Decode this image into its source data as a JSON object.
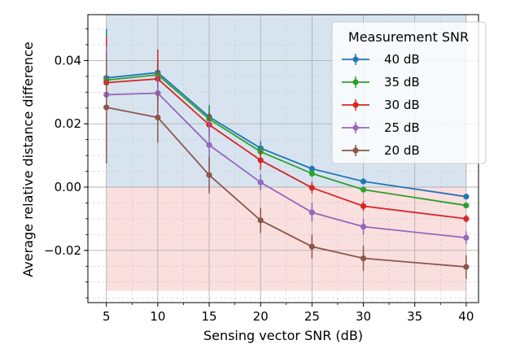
{
  "chart_data": {
    "type": "line",
    "title": "",
    "xlabel": "Sensing vector SNR (dB)",
    "ylabel": "Average relative distance difference",
    "x": [
      5,
      10,
      15,
      20,
      25,
      30,
      40
    ],
    "xlim": [
      3.2,
      41.2
    ],
    "ylim": [
      -0.0365,
      0.0545
    ],
    "xticks": [
      5,
      10,
      15,
      20,
      25,
      30,
      35,
      40
    ],
    "xtick_labels": [
      "5",
      "10",
      "15",
      "20",
      "25",
      "30",
      "35",
      "40"
    ],
    "yticks": [
      -0.02,
      0.0,
      0.02,
      0.04
    ],
    "ytick_labels": [
      "−0.02",
      "0.00",
      "0.02",
      "0.04"
    ],
    "grid": true,
    "legend_title": "Measurement SNR",
    "legend_position": "top-right",
    "shaded_regions": [
      {
        "name": "positive",
        "x_range": [
          5,
          40
        ],
        "y_range": [
          0.0,
          0.0545
        ],
        "color": "#b7cee3"
      },
      {
        "name": "negative",
        "x_range": [
          5,
          40
        ],
        "y_range": [
          -0.0328,
          0.0
        ],
        "color": "#f6c4c4"
      }
    ],
    "series": [
      {
        "name": "40 dB",
        "color": "#1f77b4",
        "values": [
          0.0345,
          0.0362,
          0.0222,
          0.0123,
          0.0058,
          0.0018,
          -0.003
        ],
        "err_lo": [
          0.0195,
          0.0325,
          0.0195,
          0.01,
          0.005,
          0.0015,
          -0.0035
        ],
        "err_hi": [
          0.05,
          0.04,
          0.026,
          0.0145,
          0.0068,
          0.0022,
          -0.0026
        ]
      },
      {
        "name": "35 dB",
        "color": "#2ca02c",
        "values": [
          0.0338,
          0.0355,
          0.0215,
          0.0112,
          0.0043,
          -0.0008,
          -0.0058
        ],
        "err_lo": [
          0.019,
          0.0315,
          0.0188,
          0.0092,
          0.0032,
          -0.0015,
          -0.0065
        ],
        "err_hi": [
          0.0485,
          0.0395,
          0.025,
          0.0132,
          0.0054,
          -0.0002,
          -0.0052
        ]
      },
      {
        "name": "30 dB",
        "color": "#d62728",
        "values": [
          0.033,
          0.0342,
          0.0197,
          0.0085,
          -0.0002,
          -0.006,
          -0.01
        ],
        "err_lo": [
          0.018,
          0.028,
          0.016,
          0.0055,
          -0.002,
          -0.0075,
          -0.0112
        ],
        "err_hi": [
          0.0475,
          0.0435,
          0.0235,
          0.0115,
          0.0017,
          -0.0045,
          -0.0088
        ]
      },
      {
        "name": "25 dB",
        "color": "#9467bd",
        "values": [
          0.0292,
          0.0297,
          0.0133,
          0.0015,
          -0.008,
          -0.0125,
          -0.016
        ],
        "err_lo": [
          0.013,
          0.024,
          0.0055,
          -0.001,
          -0.011,
          -0.015,
          -0.018
        ],
        "err_hi": [
          0.0445,
          0.0355,
          0.021,
          0.004,
          -0.005,
          -0.01,
          -0.014
        ]
      },
      {
        "name": "20 dB",
        "color": "#8c564b",
        "values": [
          0.0252,
          0.022,
          0.0038,
          -0.0105,
          -0.0188,
          -0.0225,
          -0.0252
        ],
        "err_lo": [
          0.0075,
          0.014,
          -0.002,
          -0.0145,
          -0.0225,
          -0.0265,
          -0.029
        ],
        "err_hi": [
          0.0425,
          0.03,
          0.0095,
          -0.0065,
          -0.015,
          -0.0185,
          -0.0215
        ]
      }
    ]
  }
}
